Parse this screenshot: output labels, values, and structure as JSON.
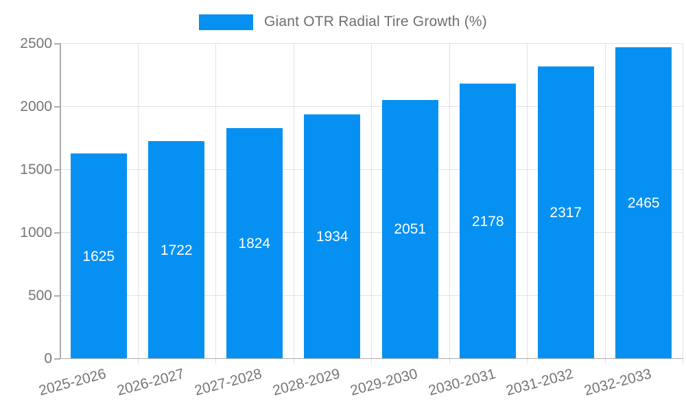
{
  "chart_data": {
    "type": "bar",
    "categories": [
      "2025-2026",
      "2026-2027",
      "2027-2028",
      "2028-2029",
      "2029-2030",
      "2030-2031",
      "2031-2032",
      "2032-2033"
    ],
    "series": [
      {
        "name": "Giant OTR Radial Tire Growth (%)",
        "values": [
          1625,
          1722,
          1824,
          1934,
          2051,
          2178,
          2317,
          2465
        ]
      }
    ],
    "title": "",
    "xlabel": "",
    "ylabel": "",
    "ylim": [
      0,
      2500
    ],
    "yticks": [
      0,
      500,
      1000,
      1500,
      2000,
      2500
    ],
    "grid": true,
    "legend_position": "top-center",
    "value_labels": true,
    "value_label_position": "center-of-bar",
    "colors": {
      "bar": "#0691f2",
      "grid": "#e2e2e2",
      "axis": "#ababab",
      "tick_text": "#757575",
      "legend_text": "#6e6e6e",
      "value_label_text": "#ffffff",
      "background": "#ffffff"
    }
  }
}
